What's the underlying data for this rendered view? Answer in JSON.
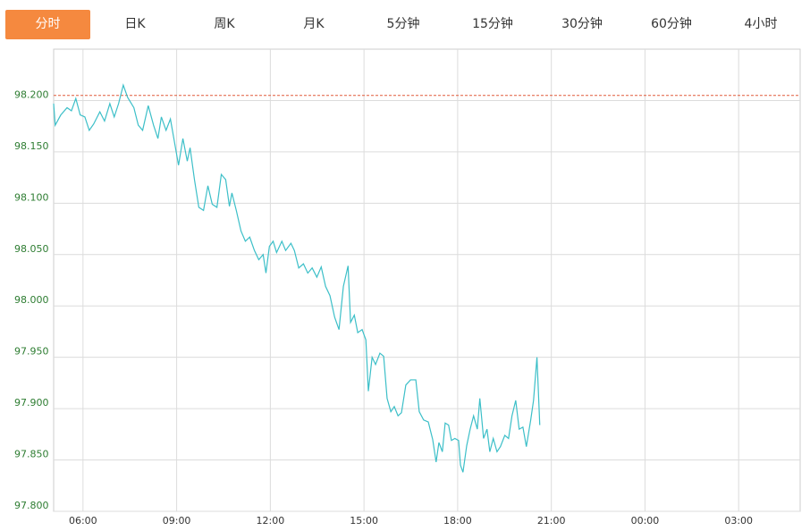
{
  "tabs": [
    {
      "label": "分时",
      "active": true
    },
    {
      "label": "日K"
    },
    {
      "label": "周K"
    },
    {
      "label": "月K"
    },
    {
      "label": "5分钟"
    },
    {
      "label": "15分钟"
    },
    {
      "label": "30分钟"
    },
    {
      "label": "60分钟"
    },
    {
      "label": "4小时"
    }
  ],
  "chart_data": {
    "type": "line",
    "x": [
      5.06,
      5.11,
      5.29,
      5.49,
      5.63,
      5.77,
      5.91,
      6.06,
      6.2,
      6.34,
      6.54,
      6.69,
      6.86,
      7.0,
      7.14,
      7.29,
      7.43,
      7.63,
      7.77,
      7.91,
      8.09,
      8.26,
      8.4,
      8.51,
      8.66,
      8.8,
      8.91,
      9.06,
      9.2,
      9.34,
      9.43,
      9.57,
      9.71,
      9.86,
      10.0,
      10.14,
      10.29,
      10.43,
      10.57,
      10.69,
      10.77,
      10.91,
      11.06,
      11.2,
      11.34,
      11.49,
      11.63,
      11.77,
      11.86,
      11.97,
      12.09,
      12.2,
      12.37,
      12.49,
      12.66,
      12.77,
      12.91,
      13.06,
      13.2,
      13.34,
      13.49,
      13.63,
      13.77,
      13.91,
      14.06,
      14.2,
      14.34,
      14.49,
      14.57,
      14.69,
      14.8,
      14.94,
      15.06,
      15.14,
      15.26,
      15.37,
      15.51,
      15.63,
      15.74,
      15.86,
      15.97,
      16.09,
      16.2,
      16.34,
      16.49,
      16.66,
      16.77,
      16.91,
      17.06,
      17.2,
      17.31,
      17.4,
      17.51,
      17.6,
      17.71,
      17.8,
      17.91,
      18.03,
      18.09,
      18.17,
      18.29,
      18.4,
      18.51,
      18.63,
      18.71,
      18.83,
      18.94,
      19.03,
      19.14,
      19.26,
      19.37,
      19.51,
      19.63,
      19.74,
      19.86,
      19.97,
      20.09,
      20.2,
      20.34,
      20.43,
      20.54,
      20.63
    ],
    "series": [
      {
        "color": "#3cbfc8",
        "values": [
          98.197,
          98.176,
          98.186,
          98.193,
          98.19,
          98.202,
          98.186,
          98.184,
          98.171,
          98.177,
          98.189,
          98.18,
          98.197,
          98.184,
          98.197,
          98.215,
          98.203,
          98.193,
          98.176,
          98.171,
          98.195,
          98.176,
          98.163,
          98.184,
          98.171,
          98.182,
          98.163,
          98.137,
          98.163,
          98.141,
          98.154,
          98.123,
          98.096,
          98.093,
          98.117,
          98.099,
          98.096,
          98.128,
          98.123,
          98.097,
          98.11,
          98.093,
          98.073,
          98.063,
          98.067,
          98.054,
          98.045,
          98.05,
          98.032,
          98.058,
          98.063,
          98.052,
          98.063,
          98.054,
          98.061,
          98.054,
          98.037,
          98.041,
          98.032,
          98.037,
          98.028,
          98.038,
          98.019,
          98.01,
          97.989,
          97.977,
          98.019,
          98.039,
          97.984,
          97.991,
          97.974,
          97.977,
          97.967,
          97.917,
          97.95,
          97.943,
          97.954,
          97.951,
          97.91,
          97.897,
          97.902,
          97.893,
          97.896,
          97.923,
          97.928,
          97.928,
          97.897,
          97.889,
          97.887,
          97.87,
          97.848,
          97.867,
          97.858,
          97.886,
          97.884,
          97.869,
          97.871,
          97.869,
          97.845,
          97.838,
          97.864,
          97.88,
          97.893,
          97.88,
          97.91,
          97.871,
          97.88,
          97.858,
          97.871,
          97.858,
          97.863,
          97.874,
          97.871,
          97.893,
          97.908,
          97.88,
          97.882,
          97.863,
          97.889,
          97.908,
          97.95,
          97.884
        ]
      }
    ],
    "ref_line": {
      "value": 98.205,
      "color": "#e05a3a"
    },
    "xlim": [
      5.06,
      28.97
    ],
    "xticks": [
      {
        "value": 6,
        "label": "06:00"
      },
      {
        "value": 9,
        "label": "09:00"
      },
      {
        "value": 12,
        "label": "12:00"
      },
      {
        "value": 15,
        "label": "15:00"
      },
      {
        "value": 18,
        "label": "18:00"
      },
      {
        "value": 21,
        "label": "21:00"
      },
      {
        "value": 24,
        "label": "00:00"
      },
      {
        "value": 27,
        "label": "03:00"
      }
    ],
    "ylim": [
      97.8,
      98.25
    ],
    "yticks": [
      {
        "value": 97.8,
        "label": "97.800"
      },
      {
        "value": 97.85,
        "label": "97.850"
      },
      {
        "value": 97.9,
        "label": "97.900"
      },
      {
        "value": 97.95,
        "label": "97.950"
      },
      {
        "value": 98.0,
        "label": "98.000"
      },
      {
        "value": 98.05,
        "label": "98.050"
      },
      {
        "value": 98.1,
        "label": "98.100"
      },
      {
        "value": 98.15,
        "label": "98.150"
      },
      {
        "value": 98.2,
        "label": "98.200"
      }
    ],
    "grid": true
  }
}
